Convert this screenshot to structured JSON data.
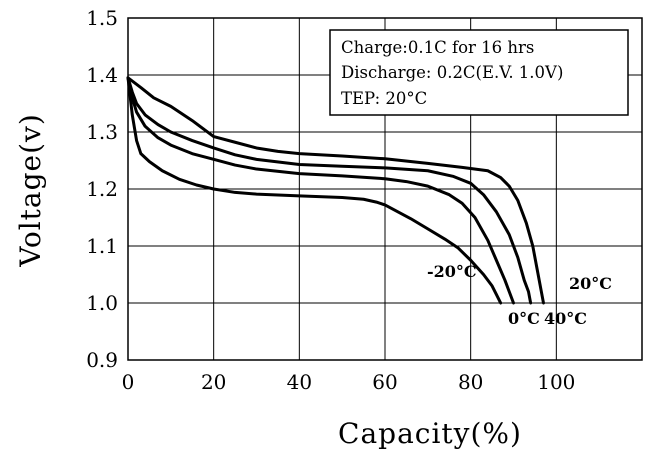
{
  "chart_data": {
    "type": "line",
    "title": "",
    "xlabel": "Capacity(%)",
    "ylabel": "Voltage(v)",
    "xlim": [
      0,
      120
    ],
    "ylim": [
      0.9,
      1.5
    ],
    "x_ticks": [
      0,
      20,
      40,
      60,
      80,
      100
    ],
    "y_ticks": [
      0.9,
      1.0,
      1.1,
      1.2,
      1.3,
      1.4,
      1.5
    ],
    "x_tick_labels": [
      "0",
      "20",
      "40",
      "60",
      "80",
      "100"
    ],
    "y_tick_labels": [
      "0.9",
      "1.0",
      "1.1",
      "1.2",
      "1.3",
      "1.4",
      "1.5"
    ],
    "grid": true,
    "annotation_box": {
      "lines": [
        "Charge:0.1C for 16 hrs",
        "Discharge: 0.2C(E.V. 1.0V)",
        "TEP: 20°C"
      ],
      "placement": "top-right"
    },
    "series": [
      {
        "name": "-20°C",
        "points": [
          [
            0,
            1.395
          ],
          [
            1,
            1.33
          ],
          [
            2,
            1.285
          ],
          [
            3,
            1.262
          ],
          [
            5,
            1.248
          ],
          [
            8,
            1.232
          ],
          [
            12,
            1.217
          ],
          [
            16,
            1.207
          ],
          [
            20,
            1.2
          ],
          [
            25,
            1.194
          ],
          [
            30,
            1.191
          ],
          [
            40,
            1.188
          ],
          [
            50,
            1.185
          ],
          [
            55,
            1.182
          ],
          [
            58,
            1.177
          ],
          [
            60,
            1.172
          ],
          [
            63,
            1.16
          ],
          [
            66,
            1.148
          ],
          [
            70,
            1.13
          ],
          [
            74,
            1.112
          ],
          [
            77,
            1.097
          ],
          [
            80,
            1.075
          ],
          [
            83,
            1.05
          ],
          [
            85,
            1.03
          ],
          [
            86,
            1.015
          ],
          [
            87,
            1.0
          ]
        ]
      },
      {
        "name": "0°C",
        "points": [
          [
            0,
            1.395
          ],
          [
            1,
            1.36
          ],
          [
            2,
            1.335
          ],
          [
            4,
            1.31
          ],
          [
            7,
            1.29
          ],
          [
            10,
            1.277
          ],
          [
            15,
            1.262
          ],
          [
            20,
            1.252
          ],
          [
            25,
            1.242
          ],
          [
            30,
            1.235
          ],
          [
            40,
            1.227
          ],
          [
            50,
            1.223
          ],
          [
            60,
            1.218
          ],
          [
            65,
            1.213
          ],
          [
            70,
            1.205
          ],
          [
            75,
            1.19
          ],
          [
            78,
            1.175
          ],
          [
            81,
            1.15
          ],
          [
            84,
            1.11
          ],
          [
            86,
            1.075
          ],
          [
            88,
            1.04
          ],
          [
            89,
            1.02
          ],
          [
            90,
            1.0
          ]
        ]
      },
      {
        "name": "40°C",
        "points": [
          [
            0,
            1.395
          ],
          [
            1,
            1.37
          ],
          [
            2,
            1.35
          ],
          [
            4,
            1.33
          ],
          [
            7,
            1.313
          ],
          [
            10,
            1.3
          ],
          [
            15,
            1.285
          ],
          [
            20,
            1.272
          ],
          [
            25,
            1.26
          ],
          [
            30,
            1.252
          ],
          [
            40,
            1.243
          ],
          [
            50,
            1.24
          ],
          [
            60,
            1.237
          ],
          [
            70,
            1.232
          ],
          [
            76,
            1.222
          ],
          [
            80,
            1.21
          ],
          [
            83,
            1.19
          ],
          [
            86,
            1.16
          ],
          [
            89,
            1.12
          ],
          [
            91,
            1.08
          ],
          [
            92.5,
            1.04
          ],
          [
            93.5,
            1.02
          ],
          [
            94,
            1.0
          ]
        ]
      },
      {
        "name": "20°C",
        "points": [
          [
            0,
            1.395
          ],
          [
            3,
            1.378
          ],
          [
            6,
            1.36
          ],
          [
            10,
            1.345
          ],
          [
            15,
            1.32
          ],
          [
            20,
            1.292
          ],
          [
            25,
            1.282
          ],
          [
            30,
            1.272
          ],
          [
            35,
            1.266
          ],
          [
            40,
            1.262
          ],
          [
            50,
            1.258
          ],
          [
            60,
            1.253
          ],
          [
            70,
            1.245
          ],
          [
            78,
            1.238
          ],
          [
            84,
            1.232
          ],
          [
            87,
            1.22
          ],
          [
            89,
            1.205
          ],
          [
            91,
            1.18
          ],
          [
            93,
            1.14
          ],
          [
            94.5,
            1.1
          ],
          [
            95.5,
            1.06
          ],
          [
            96.5,
            1.02
          ],
          [
            97,
            1.0
          ]
        ]
      }
    ],
    "series_label_positions": {
      "-20°C": "left of curve end, near 1.05",
      "0°C": "below curve end",
      "40°C": "below curve end",
      "20°C": "right of curve end"
    }
  },
  "labels": {
    "minus20": "-20°C",
    "zero": "0°C",
    "forty": "40°C",
    "twenty": "20°C"
  }
}
